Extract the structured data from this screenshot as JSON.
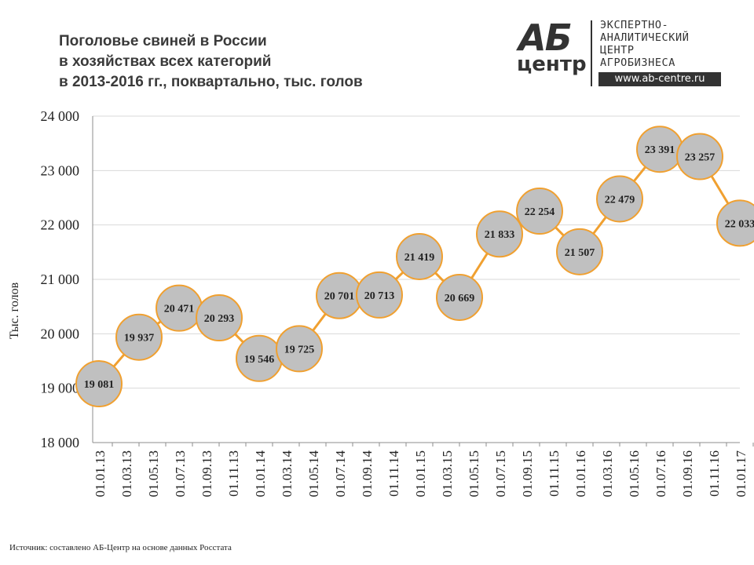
{
  "header": {
    "title_lines": [
      "Поголовье свиней в России",
      "в хозяйствах всех категорий",
      "в 2013-2016 гг., поквартально, тыс. голов"
    ]
  },
  "logo": {
    "mark": "АБ",
    "mark_sub": "центр",
    "text_lines": [
      "ЭКСПЕРТНО-",
      "АНАЛИТИЧЕСКИЙ",
      "ЦЕНТР",
      "АГРОБИЗНЕСА"
    ],
    "url": "www.ab-centre.ru"
  },
  "chart_data": {
    "type": "line",
    "ylabel": "Тыс. голов",
    "xlabel": "",
    "ylim": [
      18000,
      24000
    ],
    "y_ticks": [
      18000,
      19000,
      20000,
      21000,
      22000,
      23000,
      24000
    ],
    "y_tick_labels": [
      "18 000",
      "19 000",
      "20 000",
      "21 000",
      "22 000",
      "23 000",
      "24 000"
    ],
    "x_tick_labels": [
      "01.01.13",
      "01.03.13",
      "01.05.13",
      "01.07.13",
      "01.09.13",
      "01.11.13",
      "01.01.14",
      "01.03.14",
      "01.05.14",
      "01.07.14",
      "01.09.14",
      "01.11.14",
      "01.01.15",
      "01.03.15",
      "01.05.15",
      "01.07.15",
      "01.09.15",
      "01.11.15",
      "01.01.16",
      "01.03.16",
      "01.05.16",
      "01.07.16",
      "01.09.16",
      "01.11.16",
      "01.01.17"
    ],
    "grid": true,
    "colors": {
      "line": "#f0a030",
      "marker_fill": "#c0c0c0",
      "marker_stroke": "#f0a030",
      "grid": "#d9d9d9"
    },
    "series": [
      {
        "values": [
          19081,
          19937,
          20471,
          20293,
          19546,
          19725,
          20701,
          20713,
          21419,
          20669,
          21833,
          22254,
          21507,
          22479,
          23391,
          23257,
          22033
        ],
        "labels": [
          "19 081",
          "19 937",
          "20 471",
          "20 293",
          "19 546",
          "19 725",
          "20 701",
          "20 713",
          "21 419",
          "20 669",
          "21 833",
          "22 254",
          "21 507",
          "22 479",
          "23 391",
          "23 257",
          "22 033"
        ]
      }
    ]
  },
  "footer": {
    "source": "Источник: составлено АБ-Центр на основе данных Росстата"
  }
}
